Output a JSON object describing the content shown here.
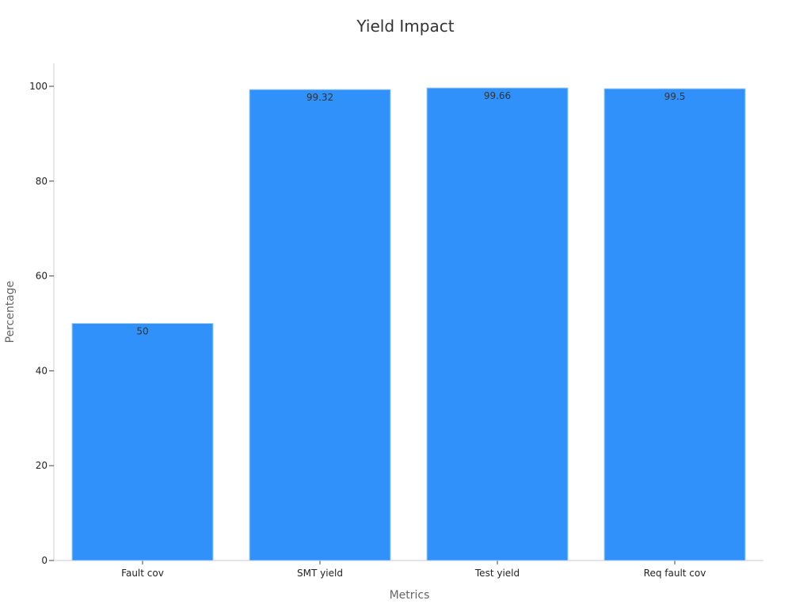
{
  "chart_data": {
    "type": "bar",
    "title": "Yield Impact",
    "xlabel": "Metrics",
    "ylabel": "Percentage",
    "categories": [
      "Fault cov",
      "SMT yield",
      "Test yield",
      "Req fault cov"
    ],
    "values": [
      50,
      99.32,
      99.66,
      99.5
    ],
    "data_labels": [
      "50",
      "99.32",
      "99.66",
      "99.5"
    ],
    "ylim": [
      0,
      105
    ],
    "yticks": [
      0,
      20,
      40,
      60,
      80,
      100
    ],
    "ytick_labels": [
      "0",
      "20",
      "40",
      "60",
      "80",
      "100"
    ],
    "grid": false,
    "legend": "none",
    "colors": {
      "bar": "#2f91f9",
      "axis": "#cccccc"
    }
  }
}
